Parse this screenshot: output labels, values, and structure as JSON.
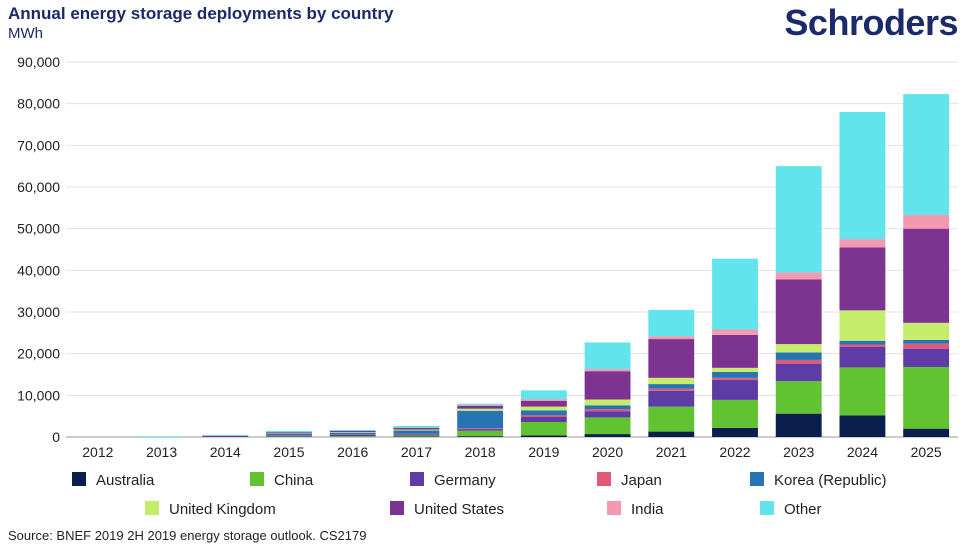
{
  "header": {
    "title": "Annual energy storage deployments by country",
    "unit": "MWh",
    "logo": "Schroders"
  },
  "footer": {
    "source": "Source: BNEF 2019 2H 2019 energy storage outlook. CS2179"
  },
  "chart_data": {
    "type": "bar",
    "stacked": true,
    "title": "Annual energy storage deployments by country",
    "ylabel": "MWh",
    "ylim": [
      0,
      90000
    ],
    "yticks": [
      0,
      10000,
      20000,
      30000,
      40000,
      50000,
      60000,
      70000,
      80000,
      90000
    ],
    "ytick_labels": [
      "0",
      "10,000",
      "20,000",
      "30,000",
      "40,000",
      "50,000",
      "60,000",
      "70,000",
      "80,000",
      "90,000"
    ],
    "grid": true,
    "legend_position": "bottom",
    "categories": [
      "2012",
      "2013",
      "2014",
      "2015",
      "2016",
      "2017",
      "2018",
      "2019",
      "2020",
      "2021",
      "2022",
      "2023",
      "2024",
      "2025"
    ],
    "series": [
      {
        "name": "Australia",
        "color": "#0b1f4f",
        "values": [
          0,
          0,
          0,
          0,
          50,
          100,
          200,
          400,
          700,
          1300,
          2200,
          5600,
          5200,
          2000
        ]
      },
      {
        "name": "China",
        "color": "#62c332",
        "values": [
          0,
          0,
          0,
          100,
          150,
          250,
          1300,
          3200,
          4000,
          6000,
          6700,
          7800,
          11500,
          14800
        ]
      },
      {
        "name": "Germany",
        "color": "#5e3ca5",
        "values": [
          0,
          0,
          100,
          200,
          300,
          300,
          400,
          1200,
          1500,
          3800,
          4800,
          4200,
          4900,
          4400
        ]
      },
      {
        "name": "Japan",
        "color": "#e05a75",
        "values": [
          0,
          0,
          0,
          50,
          100,
          100,
          200,
          400,
          500,
          500,
          500,
          900,
          600,
          1200
        ]
      },
      {
        "name": "Korea (Republic)",
        "color": "#2774b5",
        "values": [
          0,
          0,
          0,
          400,
          400,
          800,
          4200,
          1200,
          900,
          1100,
          1400,
          1800,
          900,
          900
        ]
      },
      {
        "name": "United Kingdom",
        "color": "#c6ec6c",
        "values": [
          0,
          0,
          0,
          100,
          150,
          250,
          500,
          900,
          1400,
          1500,
          1000,
          2000,
          7300,
          4100
        ]
      },
      {
        "name": "United States",
        "color": "#7d3390",
        "values": [
          0,
          0,
          200,
          300,
          300,
          400,
          700,
          1400,
          6800,
          9300,
          7900,
          15500,
          15100,
          22600
        ]
      },
      {
        "name": "India",
        "color": "#f39ab0",
        "values": [
          0,
          0,
          0,
          0,
          0,
          50,
          200,
          400,
          500,
          700,
          1300,
          1700,
          2000,
          3300
        ]
      },
      {
        "name": "Other",
        "color": "#62e4ec",
        "values": [
          0,
          200,
          200,
          300,
          250,
          400,
          300,
          2100,
          6400,
          6300,
          17000,
          25500,
          30500,
          29000
        ]
      }
    ]
  }
}
